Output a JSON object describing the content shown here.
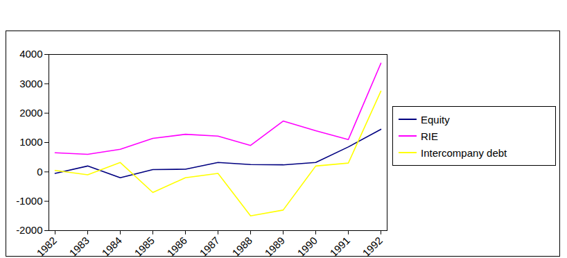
{
  "chart_data": {
    "type": "line",
    "categories": [
      "1982",
      "1983",
      "1984",
      "1985",
      "1986",
      "1987",
      "1988",
      "1989",
      "1990",
      "1991",
      "1992"
    ],
    "series": [
      {
        "name": "Equity",
        "color": "#000080",
        "values": [
          -50,
          200,
          -200,
          80,
          90,
          320,
          250,
          240,
          320,
          850,
          1450
        ]
      },
      {
        "name": "RIE",
        "color": "#ff00ff",
        "values": [
          650,
          600,
          770,
          1140,
          1280,
          1220,
          900,
          1730,
          1400,
          1100,
          3700
        ]
      },
      {
        "name": "Intercompany debt",
        "color": "#ffff00",
        "values": [
          50,
          -100,
          320,
          -700,
          -200,
          -50,
          -1500,
          -1300,
          200,
          300,
          2750
        ]
      }
    ],
    "ylim": [
      -2000,
      4000
    ],
    "yticks": [
      -2000,
      -1000,
      0,
      1000,
      2000,
      3000,
      4000
    ],
    "grid": false,
    "legend": "right"
  }
}
